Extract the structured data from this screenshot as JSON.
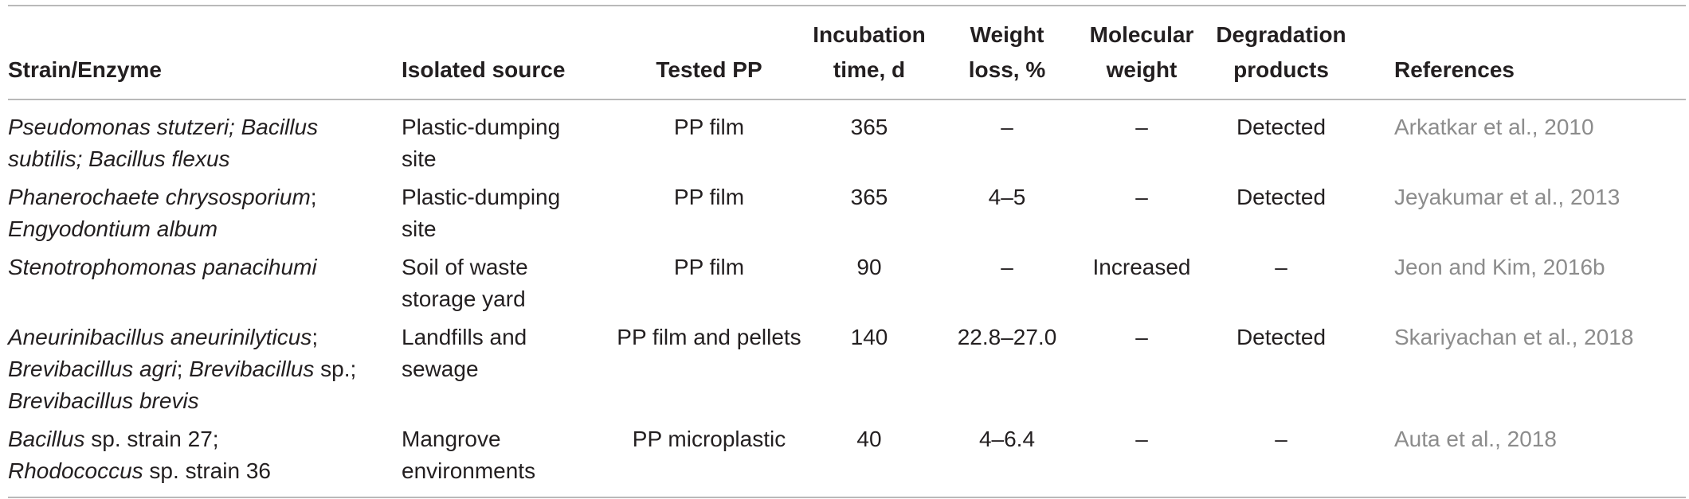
{
  "headers": [
    [
      "Strain/Enzyme"
    ],
    [
      "Isolated source"
    ],
    [
      "Tested PP"
    ],
    [
      "Incubation",
      "time, d"
    ],
    [
      "Weight",
      "loss, %"
    ],
    [
      "Molecular",
      "weight"
    ],
    [
      "Degradation",
      "products"
    ],
    [
      "References"
    ]
  ],
  "rows": [
    {
      "strain": [
        "Pseudomonas stutzeri; Bacillus",
        "subtilis; Bacillus flexus"
      ],
      "source": [
        "Plastic-dumping",
        "site"
      ],
      "tested": "PP film",
      "incubation": "365",
      "weight_loss": "–",
      "mol_weight": "–",
      "products": "Detected",
      "reference": "Arkatkar et al., 2010"
    },
    {
      "strain": [
        "Phanerochaete chrysosporium",
        "Engyodontium album"
      ],
      "strain_punct": ";",
      "source": [
        "Plastic-dumping",
        "site"
      ],
      "tested": "PP film",
      "incubation": "365",
      "weight_loss": "4–5",
      "mol_weight": "–",
      "products": "Detected",
      "reference": "Jeyakumar et al., 2013"
    },
    {
      "strain": [
        "Stenotrophomonas panacihumi"
      ],
      "source": [
        "Soil of waste",
        "storage yard"
      ],
      "tested": "PP film",
      "incubation": "90",
      "weight_loss": "–",
      "mol_weight": "Increased",
      "products": "–",
      "reference": "Jeon and Kim, 2016b"
    },
    {
      "strain_parts": [
        {
          "t": "Aneurinibacillus aneurinilyticus",
          "i": true
        },
        {
          "t": ";",
          "i": false,
          "br": true
        },
        {
          "t": "Brevibacillus agri",
          "i": true
        },
        {
          "t": "; ",
          "i": false
        },
        {
          "t": "Brevibacillus",
          "i": true
        },
        {
          "t": " sp.;",
          "i": false,
          "br": true
        },
        {
          "t": "Brevibacillus brevis",
          "i": true
        }
      ],
      "source": [
        "Landfills and",
        "sewage"
      ],
      "tested": "PP film and pellets",
      "incubation": "140",
      "weight_loss": "22.8–27.0",
      "mol_weight": "–",
      "products": "Detected",
      "reference": "Skariyachan et al., 2018"
    },
    {
      "strain_parts": [
        {
          "t": "Bacillus",
          "i": true
        },
        {
          "t": " sp. strain 27;",
          "i": false,
          "br": true
        },
        {
          "t": "Rhodococcus",
          "i": true
        },
        {
          "t": " sp. strain 36",
          "i": false
        }
      ],
      "source": [
        "Mangrove",
        "environments"
      ],
      "tested": "PP microplastic",
      "incubation": "40",
      "weight_loss": "4–6.4",
      "mol_weight": "–",
      "products": "–",
      "reference": "Auta et al., 2018"
    }
  ]
}
